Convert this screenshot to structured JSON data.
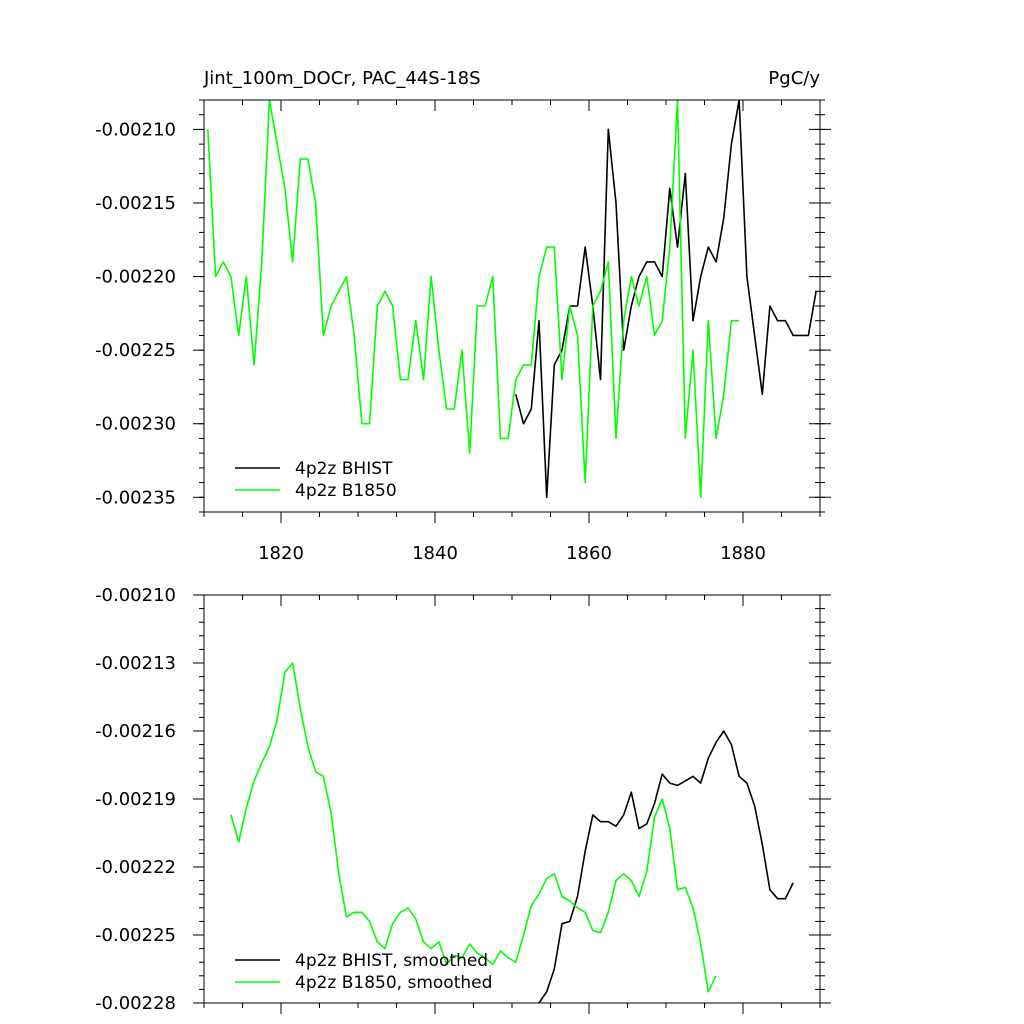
{
  "chart_data": [
    {
      "type": "line",
      "title": "Jint_100m_DOCr, PAC_44S-18S",
      "units": "PgC/y",
      "xlim": [
        1810,
        1890
      ],
      "ylim": [
        -0.00236,
        -0.00208
      ],
      "x_ticks": [
        1820,
        1840,
        1860,
        1880
      ],
      "x_tick_labels": [
        "1820",
        "1840",
        "1860",
        "1880"
      ],
      "y_ticks": [
        -0.0021,
        -0.00215,
        -0.0022,
        -0.00225,
        -0.0023,
        -0.00235
      ],
      "y_tick_labels": [
        "-0.00210",
        "-0.00215",
        "-0.00220",
        "-0.00225",
        "-0.00230",
        "-0.00235"
      ],
      "legend_position": "bottom-left",
      "series": [
        {
          "name": "4p2z BHIST",
          "color": "#000000",
          "x": [
            1850.5,
            1851.5,
            1852.5,
            1853.5,
            1854.5,
            1855.5,
            1856.5,
            1857.5,
            1858.5,
            1859.5,
            1860.5,
            1861.5,
            1862.5,
            1863.5,
            1864.5,
            1865.5,
            1866.5,
            1867.5,
            1868.5,
            1869.5,
            1870.5,
            1871.5,
            1872.5,
            1873.5,
            1874.5,
            1875.5,
            1876.5,
            1877.5,
            1878.5,
            1879.5,
            1880.5,
            1881.5,
            1882.5,
            1883.5,
            1884.5,
            1885.5,
            1886.5,
            1887.5,
            1888.5,
            1889.5
          ],
          "y": [
            -0.00228,
            -0.0023,
            -0.00229,
            -0.00223,
            -0.00235,
            -0.00226,
            -0.00225,
            -0.00222,
            -0.00222,
            -0.00218,
            -0.00222,
            -0.00227,
            -0.0021,
            -0.00215,
            -0.00225,
            -0.00222,
            -0.0022,
            -0.00219,
            -0.00219,
            -0.0022,
            -0.00214,
            -0.00218,
            -0.00213,
            -0.00223,
            -0.0022,
            -0.00218,
            -0.00219,
            -0.00216,
            -0.00211,
            -0.00208,
            -0.0022,
            -0.00224,
            -0.00228,
            -0.00222,
            -0.00223,
            -0.00223,
            -0.00224,
            -0.00224,
            -0.00224,
            -0.00221
          ]
        },
        {
          "name": "4p2z B1850",
          "color": "#00ff00",
          "x": [
            1810.5,
            1811.5,
            1812.5,
            1813.5,
            1814.5,
            1815.5,
            1816.5,
            1817.5,
            1818.5,
            1819.5,
            1820.5,
            1821.5,
            1822.5,
            1823.5,
            1824.5,
            1825.5,
            1826.5,
            1827.5,
            1828.5,
            1829.5,
            1830.5,
            1831.5,
            1832.5,
            1833.5,
            1834.5,
            1835.5,
            1836.5,
            1837.5,
            1838.5,
            1839.5,
            1840.5,
            1841.5,
            1842.5,
            1843.5,
            1844.5,
            1845.5,
            1846.5,
            1847.5,
            1848.5,
            1849.5,
            1850.5,
            1851.5,
            1852.5,
            1853.5,
            1854.5,
            1855.5,
            1856.5,
            1857.5,
            1858.5,
            1859.5,
            1860.5,
            1861.5,
            1862.5,
            1863.5,
            1864.5,
            1865.5,
            1866.5,
            1867.5,
            1868.5,
            1869.5,
            1870.5,
            1871.5,
            1872.5,
            1873.5,
            1874.5,
            1875.5,
            1876.5,
            1877.5,
            1878.5,
            1879.5
          ],
          "y": [
            -0.0021,
            -0.0022,
            -0.00219,
            -0.0022,
            -0.00224,
            -0.0022,
            -0.00226,
            -0.00219,
            -0.00208,
            -0.00211,
            -0.00214,
            -0.00219,
            -0.00212,
            -0.00212,
            -0.00215,
            -0.00224,
            -0.00222,
            -0.00221,
            -0.0022,
            -0.00224,
            -0.0023,
            -0.0023,
            -0.00222,
            -0.00221,
            -0.00222,
            -0.00227,
            -0.00227,
            -0.00223,
            -0.00227,
            -0.0022,
            -0.00225,
            -0.00229,
            -0.00229,
            -0.00225,
            -0.00232,
            -0.00222,
            -0.00222,
            -0.0022,
            -0.00231,
            -0.00231,
            -0.00227,
            -0.00226,
            -0.00226,
            -0.0022,
            -0.00218,
            -0.00218,
            -0.00227,
            -0.00222,
            -0.00224,
            -0.00234,
            -0.00222,
            -0.00221,
            -0.00219,
            -0.00231,
            -0.00223,
            -0.0022,
            -0.00222,
            -0.0022,
            -0.00224,
            -0.00223,
            -0.00218,
            -0.00208,
            -0.00231,
            -0.00225,
            -0.00235,
            -0.00223,
            -0.00231,
            -0.00228,
            -0.00223,
            -0.00223
          ]
        }
      ]
    },
    {
      "type": "line",
      "xlim": [
        1810,
        1890
      ],
      "ylim": [
        -0.00228,
        -0.0021
      ],
      "x_ticks": [
        1820,
        1840,
        1860,
        1880
      ],
      "y_ticks": [
        -0.0021,
        -0.00213,
        -0.00216,
        -0.00219,
        -0.00222,
        -0.00225,
        -0.00228
      ],
      "y_tick_labels": [
        "-0.00210",
        "-0.00213",
        "-0.00216",
        "-0.00219",
        "-0.00222",
        "-0.00225",
        "-0.00228"
      ],
      "legend_position": "bottom-left",
      "series": [
        {
          "name": "4p2z BHIST, smoothed",
          "color": "#000000",
          "x": [
            1853.5,
            1854.5,
            1855.5,
            1856.5,
            1857.5,
            1858.5,
            1859.5,
            1860.5,
            1861.5,
            1862.5,
            1863.5,
            1864.5,
            1865.5,
            1866.5,
            1867.5,
            1868.5,
            1869.5,
            1870.5,
            1871.5,
            1872.5,
            1873.5,
            1874.5,
            1875.5,
            1876.5,
            1877.5,
            1878.5,
            1879.5,
            1880.5,
            1881.5,
            1882.5,
            1883.5,
            1884.5,
            1885.5,
            1886.5
          ],
          "y": [
            -0.00228,
            -0.002275,
            -0.002265,
            -0.002245,
            -0.002244,
            -0.002233,
            -0.002213,
            -0.002197,
            -0.0022,
            -0.0022,
            -0.002202,
            -0.002197,
            -0.002187,
            -0.002203,
            -0.002201,
            -0.002192,
            -0.002179,
            -0.002183,
            -0.002184,
            -0.002182,
            -0.00218,
            -0.002183,
            -0.002172,
            -0.002165,
            -0.00216,
            -0.002166,
            -0.00218,
            -0.002183,
            -0.002193,
            -0.00221,
            -0.00223,
            -0.002234,
            -0.002234,
            -0.002227
          ]
        },
        {
          "name": "4p2z B1850, smoothed",
          "color": "#00ff00",
          "x": [
            1813.5,
            1814.5,
            1815.5,
            1816.5,
            1817.5,
            1818.5,
            1819.5,
            1820.5,
            1821.5,
            1822.5,
            1823.5,
            1824.5,
            1825.5,
            1826.5,
            1827.5,
            1828.5,
            1829.5,
            1830.5,
            1831.5,
            1832.5,
            1833.5,
            1834.5,
            1835.5,
            1836.5,
            1837.5,
            1838.5,
            1839.5,
            1840.5,
            1841.5,
            1842.5,
            1843.5,
            1844.5,
            1845.5,
            1846.5,
            1847.5,
            1848.5,
            1849.5,
            1850.5,
            1851.5,
            1852.5,
            1853.5,
            1854.5,
            1855.5,
            1856.5,
            1857.5,
            1858.5,
            1859.5,
            1860.5,
            1861.5,
            1862.5,
            1863.5,
            1864.5,
            1865.5,
            1866.5,
            1867.5,
            1868.5,
            1869.5,
            1870.5,
            1871.5,
            1872.5,
            1873.5,
            1874.5,
            1875.5,
            1876.5
          ],
          "y": [
            -0.002197,
            -0.002209,
            -0.002194,
            -0.002182,
            -0.002174,
            -0.002167,
            -0.002155,
            -0.002134,
            -0.00213,
            -0.00215,
            -0.002167,
            -0.002178,
            -0.00218,
            -0.002196,
            -0.002223,
            -0.002242,
            -0.00224,
            -0.00224,
            -0.002244,
            -0.002253,
            -0.002256,
            -0.002245,
            -0.00224,
            -0.002238,
            -0.002243,
            -0.002253,
            -0.002256,
            -0.002253,
            -0.002263,
            -0.002259,
            -0.00226,
            -0.002254,
            -0.002258,
            -0.00226,
            -0.002263,
            -0.002257,
            -0.00226,
            -0.002262,
            -0.00225,
            -0.002237,
            -0.002232,
            -0.002225,
            -0.002223,
            -0.002233,
            -0.002235,
            -0.002238,
            -0.00224,
            -0.002248,
            -0.002249,
            -0.00224,
            -0.002226,
            -0.002223,
            -0.002226,
            -0.002233,
            -0.002222,
            -0.002198,
            -0.00219,
            -0.002203,
            -0.00223,
            -0.002229,
            -0.002238,
            -0.002254,
            -0.002275,
            -0.002268
          ]
        }
      ]
    }
  ]
}
